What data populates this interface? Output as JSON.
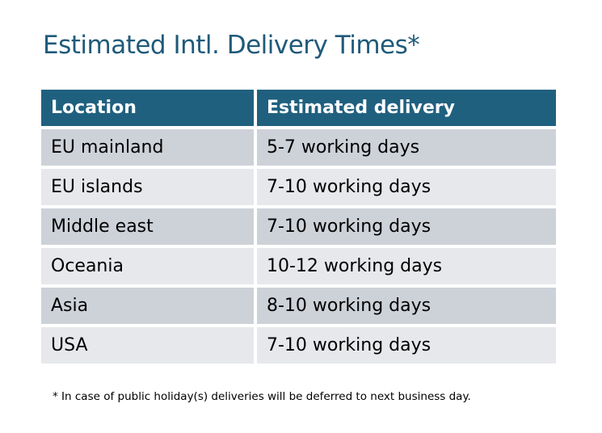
{
  "title": "Estimated Intl. Delivery Times*",
  "table": {
    "headers": [
      "Location",
      "Estimated delivery"
    ],
    "rows": [
      [
        "EU mainland",
        "5-7 working days"
      ],
      [
        "EU islands",
        "7-10 working days"
      ],
      [
        "Middle east",
        "7-10 working days"
      ],
      [
        "Oceania",
        "10-12 working days"
      ],
      [
        "Asia",
        "8-10 working days"
      ],
      [
        "USA",
        "7-10 working days"
      ]
    ]
  },
  "footnote": "* In case of public holiday(s) deliveries will be deferred to next business day.",
  "colors": {
    "header": "#20607f",
    "row_odd": "#cdd1d8",
    "row_even": "#e6e8eb",
    "title": "#1f5a7a"
  }
}
